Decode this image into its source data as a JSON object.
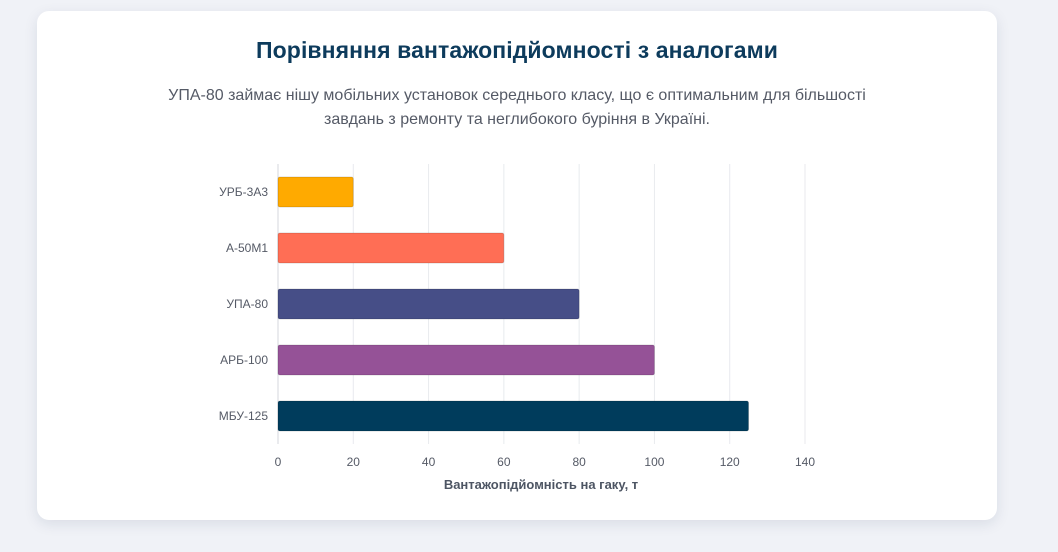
{
  "header": {
    "title": "Порівняння вантажопідйомності з аналогами",
    "subtitle": "УПА-80 займає нішу мобільних установок середнього класу, що є оптимальним для більшості завдань з ремонту та неглибокого буріння в Україні."
  },
  "chart_data": {
    "type": "bar",
    "orientation": "horizontal",
    "title": "Порівняння вантажопідйомності з аналогами",
    "xlabel": "Вантажопідйомність на гаку, т",
    "ylabel": "",
    "categories": [
      "УРБ-3А3",
      "А-50М1",
      "УПА-80",
      "АРБ-100",
      "МБУ-125"
    ],
    "values": [
      20,
      60,
      80,
      100,
      125
    ],
    "colors": [
      "#ffaa00",
      "#ff6e55",
      "#464e87",
      "#955297",
      "#003c5c"
    ],
    "xlim": [
      0,
      140
    ],
    "xticks": [
      0,
      20,
      40,
      60,
      80,
      100,
      120,
      140
    ],
    "grid": true,
    "legend": "none"
  }
}
